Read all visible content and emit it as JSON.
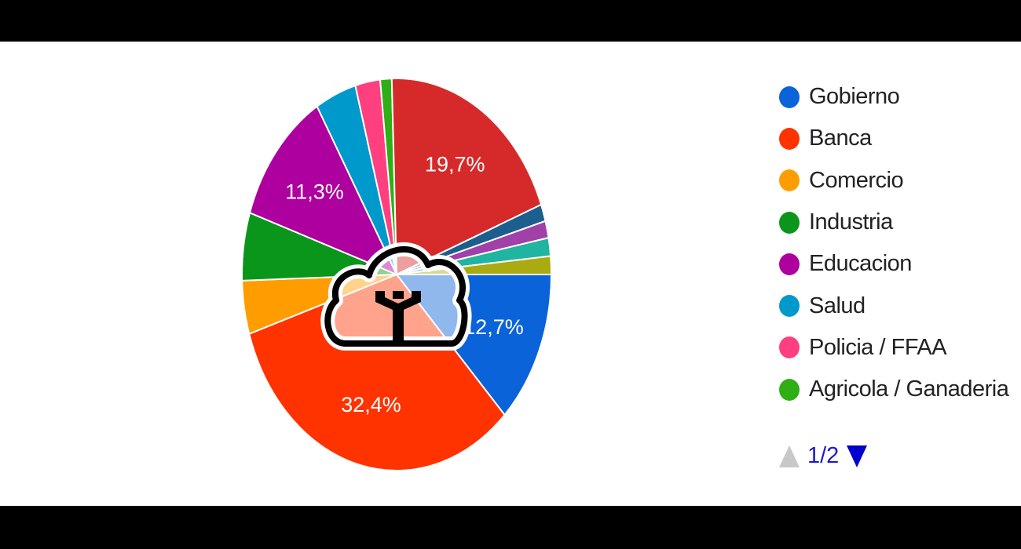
{
  "chart_data": {
    "type": "pie",
    "title": "",
    "slices": [
      {
        "name": "Gobierno",
        "value": 12.7,
        "label": "12,7%",
        "color": "#0a63d8"
      },
      {
        "name": "Banca",
        "value": 32.4,
        "label": "32,4%",
        "color": "#ff3300"
      },
      {
        "name": "Comercio",
        "value": 4.4,
        "label": "",
        "color": "#ff9d00"
      },
      {
        "name": "Industria",
        "value": 5.6,
        "label": "",
        "color": "#0a961a"
      },
      {
        "name": "Educacion",
        "value": 11.3,
        "label": "11,3%",
        "color": "#ad009e"
      },
      {
        "name": "Salud",
        "value": 4.3,
        "label": "",
        "color": "#0099cc"
      },
      {
        "name": "Policia / FFAA",
        "value": 2.6,
        "label": "",
        "color": "#ff3f80"
      },
      {
        "name": "Agricola / Ganaderia",
        "value": 1.2,
        "label": "",
        "color": "#2fae16"
      },
      {
        "name": "",
        "value": 19.7,
        "label": "19,7%",
        "color": "#d62a2a"
      },
      {
        "name": "",
        "value": 1.4,
        "label": "",
        "color": "#1c5f8e"
      },
      {
        "name": "",
        "value": 1.4,
        "label": "",
        "color": "#a040a8"
      },
      {
        "name": "",
        "value": 1.5,
        "label": "",
        "color": "#1fb5a0"
      },
      {
        "name": "",
        "value": 1.5,
        "label": "",
        "color": "#aaaa11"
      }
    ],
    "legend": {
      "placement": "right",
      "items": [
        "Gobierno",
        "Banca",
        "Comercio",
        "Industria",
        "Educacion",
        "Salud",
        "Policia / FFAA",
        "Agricola / Ganaderia"
      ],
      "page": "1/2"
    }
  },
  "watermark": "cloud-logo"
}
